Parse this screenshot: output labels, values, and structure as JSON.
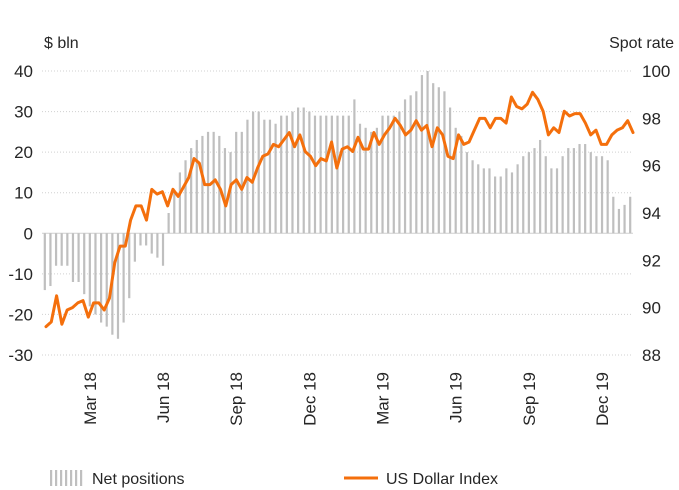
{
  "chart_data": {
    "type": "bar+line",
    "title": "",
    "left_axis_label": "$ bln",
    "right_axis_label": "Spot rate",
    "left_ylim": [
      -30,
      40
    ],
    "left_yticks": [
      -30,
      -20,
      -10,
      0,
      10,
      20,
      30,
      40
    ],
    "right_ylim": [
      88,
      100
    ],
    "right_yticks": [
      88,
      90,
      92,
      94,
      96,
      98,
      100
    ],
    "x_tick_labels": [
      "Mar 18",
      "Jun 18",
      "Sep 18",
      "Dec 18",
      "Mar 19",
      "Jun 19",
      "Sep 19",
      "Dec 19"
    ],
    "x_tick_index": [
      8,
      21,
      34,
      47,
      60,
      73,
      86,
      99
    ],
    "grid": "horizontal dotted",
    "legend_position": "bottom",
    "series": [
      {
        "name": "Net positions",
        "type": "bar",
        "axis": "left",
        "color": "#bfbfbf",
        "values": [
          -14,
          -13,
          -8,
          -8,
          -8,
          -12,
          -12,
          -15,
          -18,
          -20,
          -22,
          -23,
          -25,
          -26,
          -22,
          -16,
          -7,
          -3,
          -3,
          -5,
          -6,
          -8,
          5,
          10,
          15,
          18,
          21,
          23,
          24,
          25,
          25,
          24,
          21,
          20,
          25,
          25,
          28,
          30,
          30,
          28,
          28,
          27,
          29,
          29,
          30,
          31,
          31,
          30,
          29,
          29,
          29,
          29,
          29,
          29,
          29,
          33,
          27,
          26,
          25,
          26,
          29,
          29,
          29,
          30,
          33,
          34,
          35,
          39,
          40,
          37,
          36,
          35,
          31,
          26,
          24,
          20,
          18,
          17,
          16,
          16,
          14,
          14,
          16,
          15,
          17,
          19,
          20,
          21,
          23,
          19,
          16,
          16,
          19,
          21,
          21,
          22,
          22,
          20,
          19,
          19,
          18,
          9,
          6,
          7,
          9
        ]
      },
      {
        "name": "US Dollar Index",
        "type": "line",
        "axis": "right",
        "color": "#f46f0c",
        "values": [
          89.2,
          89.4,
          90.5,
          89.3,
          89.9,
          90.0,
          90.2,
          90.3,
          89.6,
          90.2,
          90.2,
          89.9,
          90.4,
          91.9,
          92.6,
          92.6,
          93.7,
          94.3,
          94.3,
          93.7,
          95.0,
          94.8,
          94.9,
          94.3,
          95.0,
          94.7,
          95.1,
          95.5,
          96.3,
          96.1,
          95.2,
          95.2,
          95.4,
          95.0,
          94.3,
          95.2,
          95.4,
          95.0,
          95.5,
          95.3,
          95.9,
          96.4,
          96.5,
          96.9,
          96.8,
          97.1,
          97.4,
          96.8,
          97.3,
          96.6,
          96.4,
          96.0,
          96.3,
          96.2,
          97.0,
          95.9,
          96.7,
          96.8,
          96.6,
          97.2,
          96.7,
          96.7,
          97.4,
          96.9,
          97.3,
          97.6,
          98.0,
          97.7,
          97.3,
          97.5,
          97.9,
          97.5,
          97.7,
          96.8,
          97.6,
          97.3,
          96.4,
          96.3,
          97.3,
          96.9,
          97.0,
          97.5,
          98.0,
          98.0,
          97.6,
          98.0,
          98.0,
          97.8,
          98.9,
          98.5,
          98.4,
          98.6,
          99.1,
          98.8,
          98.3,
          97.3,
          97.6,
          97.4,
          98.3,
          98.1,
          98.2,
          98.2,
          97.8,
          97.3,
          97.5,
          96.9,
          96.9,
          97.3,
          97.5,
          97.6,
          97.9,
          97.4
        ]
      }
    ]
  }
}
